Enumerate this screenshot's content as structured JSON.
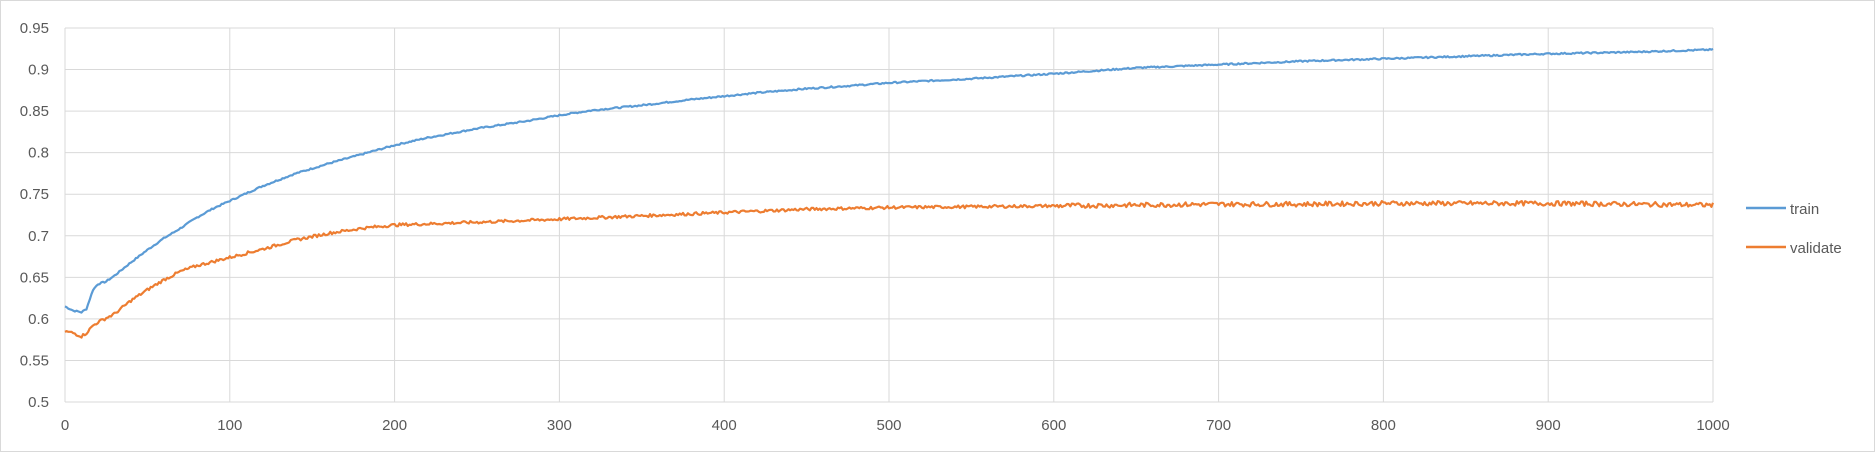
{
  "chart_data": {
    "type": "line",
    "title": "",
    "xlabel": "",
    "ylabel": "",
    "xlim": [
      0,
      1000
    ],
    "ylim": [
      0.5,
      0.95
    ],
    "x_ticks": [
      "0",
      "100",
      "200",
      "300",
      "400",
      "500",
      "600",
      "700",
      "800",
      "900",
      "1000"
    ],
    "y_ticks": [
      "0.5",
      "0.55",
      "0.6",
      "0.65",
      "0.7",
      "0.75",
      "0.8",
      "0.85",
      "0.9",
      "0.95"
    ],
    "grid": true,
    "legend_position": "right",
    "series": [
      {
        "name": "train",
        "color": "#5b9bd5",
        "x": [
          0,
          5,
          10,
          13,
          17,
          20,
          25,
          30,
          40,
          50,
          60,
          70,
          80,
          90,
          100,
          120,
          140,
          160,
          180,
          200,
          220,
          250,
          280,
          300,
          320,
          350,
          380,
          400,
          420,
          450,
          480,
          500,
          550,
          600,
          650,
          700,
          750,
          800,
          850,
          900,
          950,
          1000
        ],
        "y": [
          0.615,
          0.61,
          0.608,
          0.612,
          0.635,
          0.642,
          0.645,
          0.652,
          0.668,
          0.683,
          0.697,
          0.709,
          0.722,
          0.733,
          0.742,
          0.76,
          0.775,
          0.787,
          0.798,
          0.809,
          0.818,
          0.829,
          0.838,
          0.845,
          0.851,
          0.857,
          0.864,
          0.868,
          0.872,
          0.877,
          0.881,
          0.884,
          0.889,
          0.895,
          0.902,
          0.906,
          0.91,
          0.913,
          0.916,
          0.919,
          0.921,
          0.924
        ]
      },
      {
        "name": "validate",
        "color": "#ed7d31",
        "x": [
          0,
          5,
          10,
          13,
          17,
          20,
          30,
          40,
          50,
          60,
          70,
          80,
          90,
          100,
          120,
          140,
          160,
          180,
          200,
          230,
          260,
          300,
          350,
          400,
          450,
          500,
          550,
          600,
          650,
          700,
          750,
          800,
          850,
          900,
          950,
          1000
        ],
        "y": [
          0.585,
          0.583,
          0.579,
          0.583,
          0.592,
          0.596,
          0.606,
          0.622,
          0.635,
          0.647,
          0.657,
          0.664,
          0.669,
          0.674,
          0.684,
          0.695,
          0.703,
          0.709,
          0.713,
          0.715,
          0.717,
          0.72,
          0.724,
          0.728,
          0.732,
          0.734,
          0.735,
          0.736,
          0.737,
          0.738,
          0.738,
          0.739,
          0.739,
          0.739,
          0.738,
          0.737
        ]
      }
    ]
  }
}
